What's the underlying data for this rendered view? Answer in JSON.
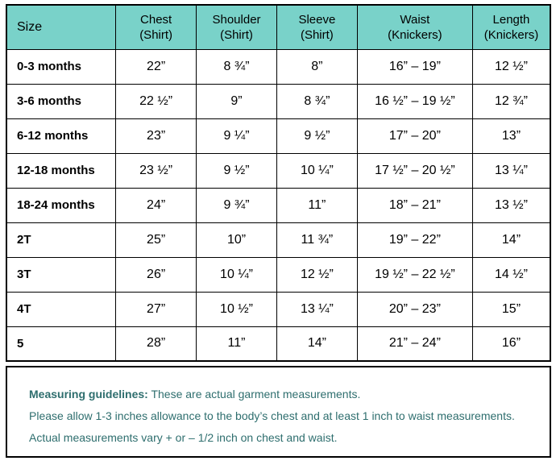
{
  "table": {
    "columns": [
      {
        "label": "Size",
        "sub": ""
      },
      {
        "label": "Chest",
        "sub": "(Shirt)"
      },
      {
        "label": "Shoulder",
        "sub": "(Shirt)"
      },
      {
        "label": "Sleeve",
        "sub": "(Shirt)"
      },
      {
        "label": "Waist",
        "sub": "(Knickers)"
      },
      {
        "label": "Length",
        "sub": "(Knickers)"
      }
    ],
    "rows": [
      {
        "size": "0-3 months",
        "chest": "22”",
        "shoulder": "8 ¾”",
        "sleeve": "8”",
        "waist": "16” – 19”",
        "length": "12 ½”"
      },
      {
        "size": "3-6 months",
        "chest": "22 ½”",
        "shoulder": "9”",
        "sleeve": "8 ¾”",
        "waist": "16 ½” – 19 ½”",
        "length": "12 ¾”"
      },
      {
        "size": "6-12 months",
        "chest": "23”",
        "shoulder": "9 ¼”",
        "sleeve": "9 ½”",
        "waist": "17” – 20”",
        "length": "13”"
      },
      {
        "size": "12-18 months",
        "chest": "23 ½”",
        "shoulder": "9 ½”",
        "sleeve": "10 ¼”",
        "waist": "17 ½” – 20 ½”",
        "length": "13 ¼”"
      },
      {
        "size": "18-24 months",
        "chest": "24”",
        "shoulder": "9 ¾”",
        "sleeve": "11”",
        "waist": "18” – 21”",
        "length": "13 ½”"
      },
      {
        "size": "2T",
        "chest": "25”",
        "shoulder": "10”",
        "sleeve": "11 ¾”",
        "waist": "19” – 22”",
        "length": "14”"
      },
      {
        "size": "3T",
        "chest": "26”",
        "shoulder": "10 ¼”",
        "sleeve": "12 ½”",
        "waist": "19 ½” – 22 ½”",
        "length": "14 ½”"
      },
      {
        "size": "4T",
        "chest": "27”",
        "shoulder": "10 ½”",
        "sleeve": "13 ¼”",
        "waist": "20” – 23”",
        "length": "15”"
      },
      {
        "size": "5",
        "chest": "28”",
        "shoulder": "11”",
        "sleeve": "14”",
        "waist": "21” – 24”",
        "length": "16”"
      }
    ]
  },
  "notes": {
    "heading": "Measuring guidelines:",
    "line1_rest": " These are actual garment measurements.",
    "line2": "Please allow 1-3 inches allowance to the body’s chest and at least 1 inch to waist measurements.",
    "line3": "Actual measurements vary + or – 1/2 inch on chest and waist."
  },
  "colors": {
    "header_bg": "#79d2c9",
    "note_text": "#2e6e6e",
    "border": "#000000"
  }
}
